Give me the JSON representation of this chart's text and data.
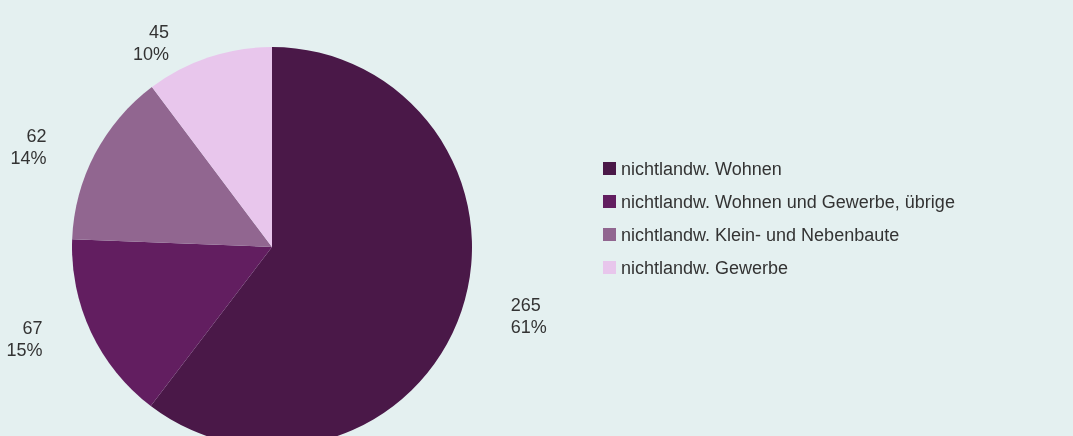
{
  "chart_data": {
    "type": "pie",
    "categories": [
      "nichtlandw. Wohnen",
      "nichtlandw. Wohnen und Gewerbe, übrige",
      "nichtlandw. Klein- und Nebenbaute",
      "nichtlandw. Gewerbe"
    ],
    "values": [
      265,
      67,
      62,
      45
    ],
    "colors": [
      "#4a1848",
      "#621e60",
      "#916690",
      "#e8c6ec"
    ],
    "value_labels": [
      "265\n61%",
      "67\n15%",
      "62\n14%",
      "45\n10%"
    ],
    "legend": "right"
  }
}
